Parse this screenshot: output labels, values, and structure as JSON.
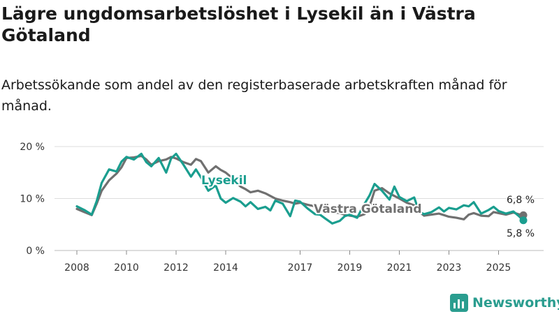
{
  "header": {
    "title": "Lägre ungdomsarbetslöshet i Lysekil än i Västra Götaland",
    "subtitle": "Arbetssökande som andel av den registerbaserade arbetskraften månad för månad."
  },
  "brand": {
    "name": "Newsworthy",
    "icon": "bar-chart-icon",
    "color": "#2a9d8f"
  },
  "colors": {
    "lysekil": "#1a9e8f",
    "vastra": "#707070",
    "grid": "#dddddd"
  },
  "chart_data": {
    "type": "line",
    "title": "Lägre ungdomsarbetslöshet i Lysekil än i Västra Götaland",
    "subtitle": "Arbetssökande som andel av den registerbaserade arbetskraften månad för månad.",
    "xlabel": "",
    "ylabel": "",
    "ylim": [
      0,
      20
    ],
    "xlim": [
      2008,
      2026.2
    ],
    "y_ticks": [
      0,
      10,
      20
    ],
    "y_tick_labels": [
      "0 %",
      "10 %",
      "20 %"
    ],
    "x_ticks": [
      2008,
      2010,
      2012,
      2014,
      2017,
      2019,
      2021,
      2023,
      2025
    ],
    "x_tick_labels": [
      "2008",
      "2010",
      "2012",
      "2014",
      "2017",
      "2019",
      "2021",
      "2023",
      "2025"
    ],
    "grid": true,
    "legend": "inline labels",
    "series": [
      {
        "name": "Lysekil",
        "label": "Lysekil",
        "end_label": "5,8 %",
        "x": [
          2008.0,
          2008.3,
          2008.6,
          2008.8,
          2009.0,
          2009.3,
          2009.6,
          2009.8,
          2010.0,
          2010.3,
          2010.6,
          2010.8,
          2011.0,
          2011.3,
          2011.6,
          2011.8,
          2012.0,
          2012.3,
          2012.6,
          2012.8,
          2013.0,
          2013.3,
          2013.6,
          2013.8,
          2014.0,
          2014.3,
          2014.6,
          2014.8,
          2015.0,
          2015.3,
          2015.6,
          2015.8,
          2016.0,
          2016.3,
          2016.6,
          2016.8,
          2017.0,
          2017.3,
          2017.6,
          2017.8,
          2018.0,
          2018.3,
          2018.6,
          2018.8,
          2019.0,
          2019.3,
          2019.6,
          2019.8,
          2020.0,
          2020.3,
          2020.6,
          2020.8,
          2021.0,
          2021.3,
          2021.6,
          2021.8,
          2022.0,
          2022.3,
          2022.6,
          2022.8,
          2023.0,
          2023.3,
          2023.6,
          2023.8,
          2024.0,
          2024.3,
          2024.6,
          2024.8,
          2025.0,
          2025.3,
          2025.6,
          2025.8,
          2026.0
        ],
        "values": [
          8.5,
          7.8,
          6.9,
          9.5,
          13.0,
          15.6,
          15.2,
          17.1,
          18.0,
          17.5,
          18.6,
          17.0,
          16.2,
          17.8,
          15.0,
          17.7,
          18.6,
          16.5,
          14.2,
          15.6,
          14.1,
          11.5,
          12.5,
          10.0,
          9.2,
          10.1,
          9.4,
          8.5,
          9.3,
          8.0,
          8.4,
          7.7,
          9.6,
          9.0,
          6.6,
          9.6,
          9.4,
          8.1,
          7.0,
          6.9,
          6.2,
          5.2,
          5.7,
          6.6,
          6.9,
          6.3,
          9.0,
          10.6,
          12.8,
          11.5,
          9.8,
          12.3,
          10.3,
          9.5,
          10.2,
          7.4,
          7.0,
          7.4,
          8.3,
          7.5,
          8.2,
          7.9,
          8.7,
          8.5,
          9.3,
          7.1,
          7.8,
          8.4,
          7.6,
          7.1,
          7.5,
          6.7,
          5.8
        ]
      },
      {
        "name": "Västra Götaland",
        "label": "Västra Götaland",
        "end_label": "6,8 %",
        "x": [
          2008.0,
          2008.3,
          2008.6,
          2008.8,
          2009.0,
          2009.3,
          2009.6,
          2009.8,
          2010.0,
          2010.3,
          2010.6,
          2010.8,
          2011.0,
          2011.3,
          2011.6,
          2011.8,
          2012.0,
          2012.3,
          2012.6,
          2012.8,
          2013.0,
          2013.3,
          2013.6,
          2013.8,
          2014.0,
          2014.3,
          2014.6,
          2014.8,
          2015.0,
          2015.3,
          2015.6,
          2015.8,
          2016.0,
          2016.3,
          2016.6,
          2016.8,
          2017.0,
          2017.3,
          2017.6,
          2017.8,
          2018.0,
          2018.3,
          2018.6,
          2018.8,
          2019.0,
          2019.3,
          2019.6,
          2019.8,
          2020.0,
          2020.3,
          2020.6,
          2020.8,
          2021.0,
          2021.3,
          2021.6,
          2021.8,
          2022.0,
          2022.3,
          2022.6,
          2022.8,
          2023.0,
          2023.3,
          2023.6,
          2023.8,
          2024.0,
          2024.3,
          2024.6,
          2024.8,
          2025.0,
          2025.3,
          2025.6,
          2025.8,
          2026.0
        ],
        "values": [
          8.0,
          7.4,
          6.8,
          9.0,
          11.5,
          13.5,
          14.8,
          16.0,
          17.8,
          17.9,
          18.2,
          17.5,
          16.5,
          17.2,
          17.5,
          18.0,
          17.7,
          17.0,
          16.5,
          17.6,
          17.2,
          15.0,
          16.2,
          15.5,
          15.0,
          13.8,
          12.3,
          11.8,
          11.2,
          11.5,
          11.0,
          10.5,
          10.0,
          9.6,
          9.3,
          9.0,
          9.2,
          8.8,
          8.5,
          8.0,
          7.6,
          7.4,
          7.2,
          6.9,
          6.7,
          6.5,
          7.0,
          8.5,
          11.5,
          12.0,
          11.0,
          10.5,
          10.0,
          9.2,
          8.7,
          7.5,
          6.7,
          6.9,
          7.1,
          6.8,
          6.5,
          6.3,
          6.0,
          6.9,
          7.2,
          6.7,
          6.6,
          7.4,
          7.2,
          6.9,
          7.3,
          7.0,
          6.8
        ]
      }
    ]
  }
}
